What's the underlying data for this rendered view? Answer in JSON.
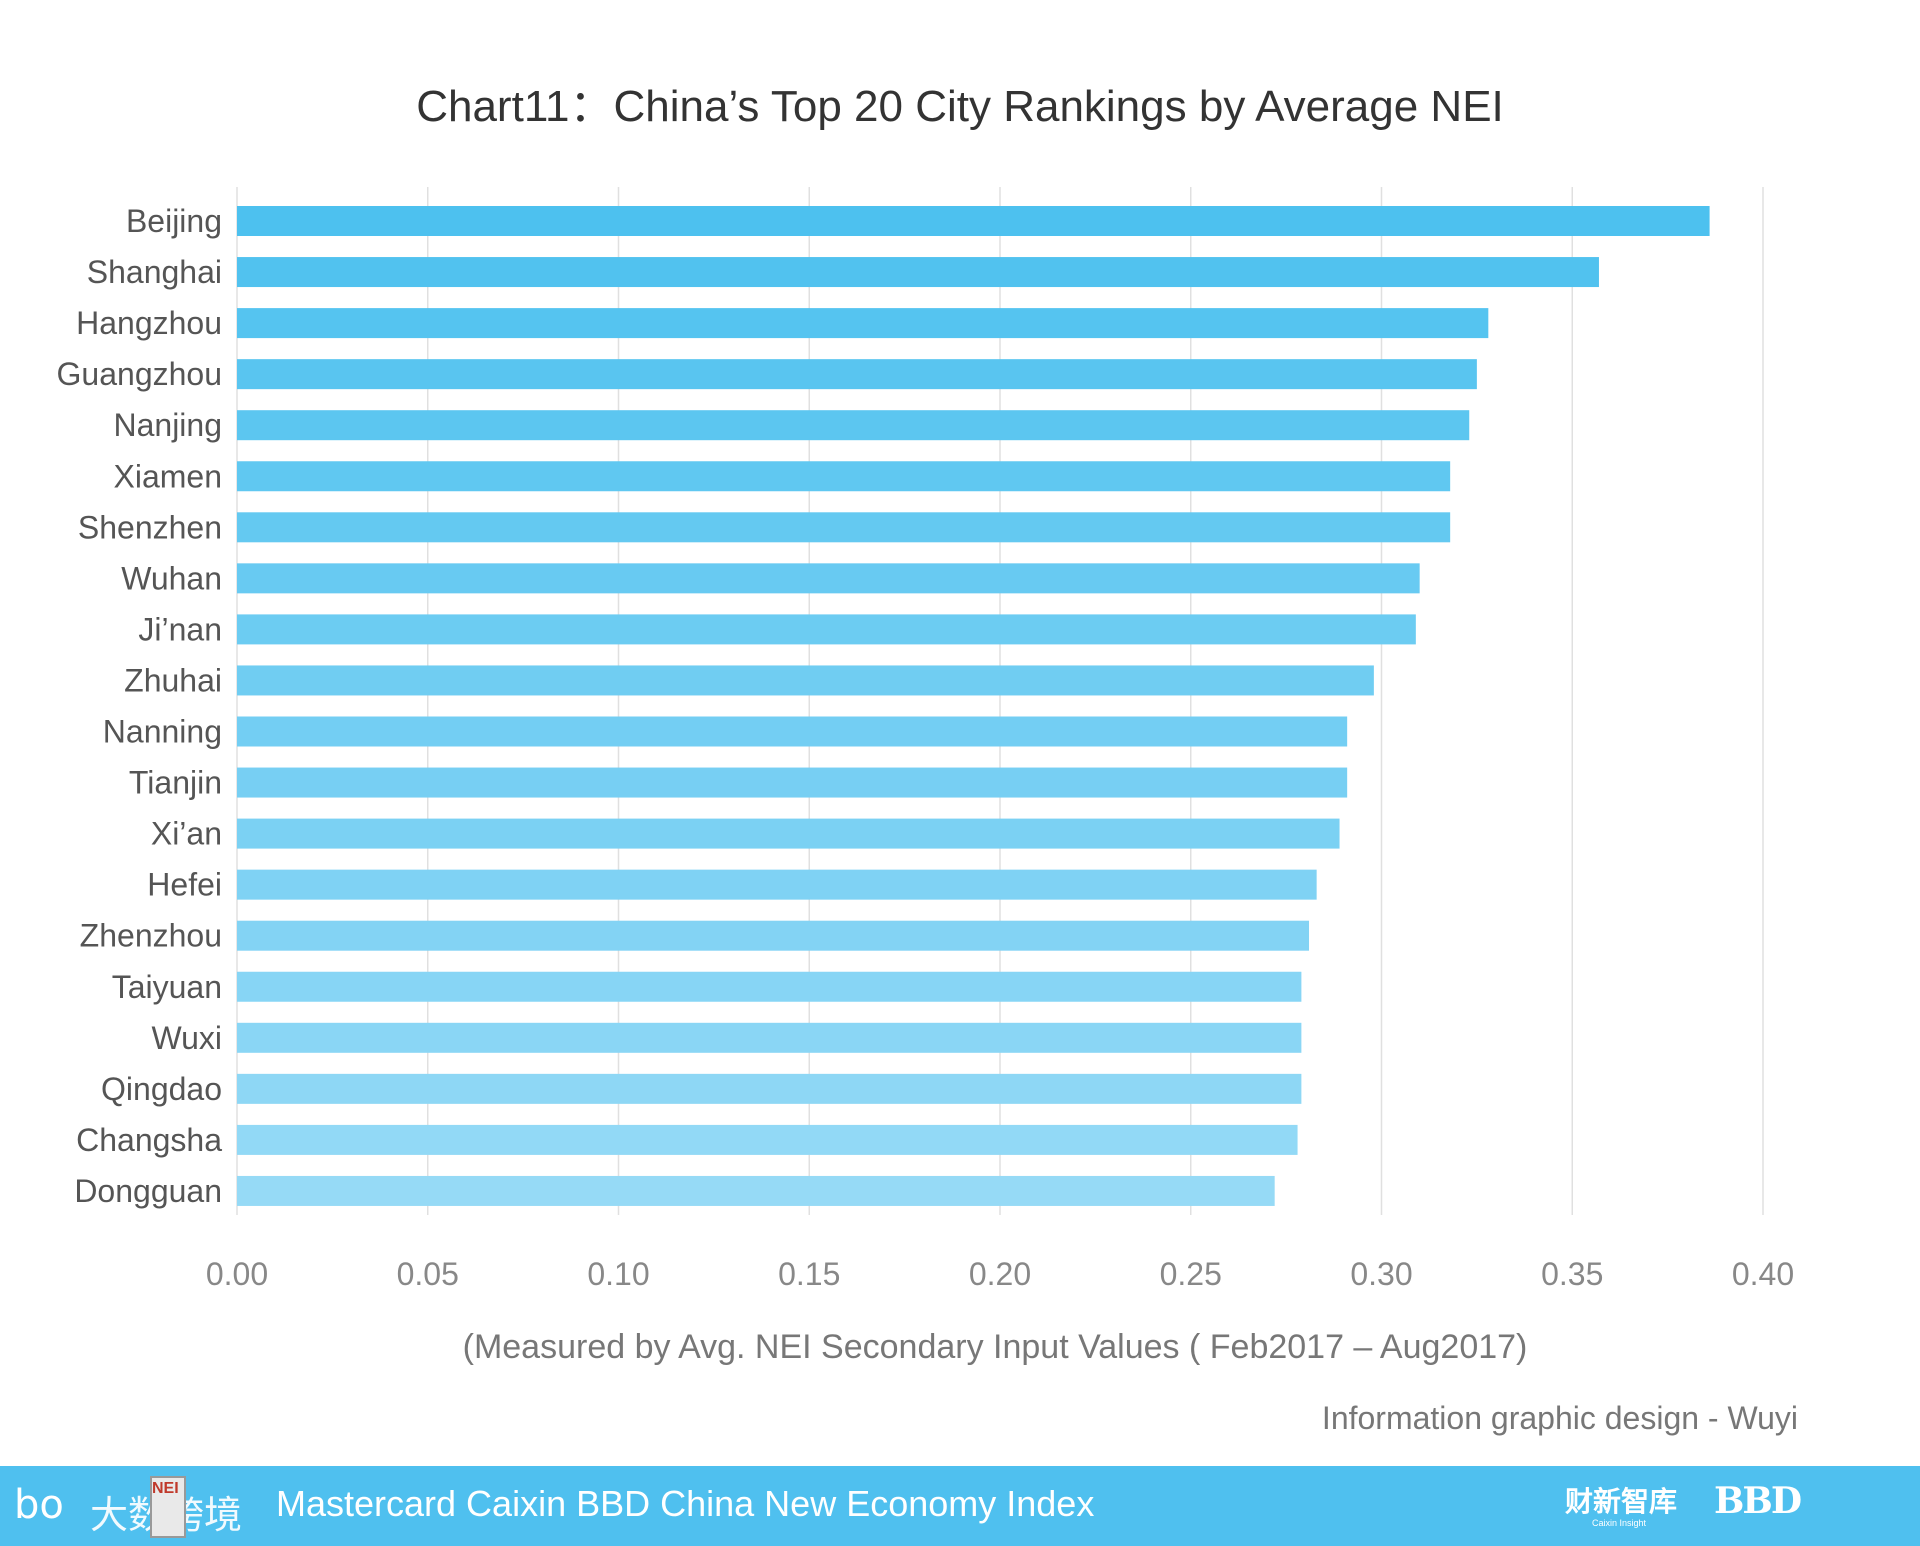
{
  "chart_data": {
    "type": "bar",
    "orientation": "horizontal",
    "title": "Chart11：China’s Top 20 City Rankings by Average NEI",
    "xlabel": "(Measured by Avg. NEI Secondary Input Values ( Feb2017 – Aug2017)",
    "ylabel": "",
    "xlim": [
      0,
      0.4
    ],
    "xticks": [
      "0.00",
      "0.05",
      "0.10",
      "0.15",
      "0.20",
      "0.25",
      "0.30",
      "0.35",
      "0.40"
    ],
    "grid": true,
    "categories": [
      "Beijing",
      "Shanghai",
      "Hangzhou",
      "Guangzhou",
      "Nanjing",
      "Xiamen",
      "Shenzhen",
      "Wuhan",
      "Ji’nan",
      "Zhuhai",
      "Nanning",
      "Tianjin",
      "Xi’an",
      "Hefei",
      "Zhenzhou",
      "Taiyuan",
      "Wuxi",
      "Qingdao",
      "Changsha",
      "Dongguan"
    ],
    "values": [
      0.386,
      0.357,
      0.328,
      0.325,
      0.323,
      0.318,
      0.318,
      0.31,
      0.309,
      0.298,
      0.291,
      0.291,
      0.289,
      0.283,
      0.281,
      0.279,
      0.279,
      0.279,
      0.278,
      0.272
    ],
    "colors": {
      "bar_top": "#4dc1ef",
      "bar_bottom": "#96daf6",
      "grid": "#e0e0e0"
    }
  },
  "credit": "Information graphic design - Wuyi",
  "footer": {
    "logo_text": "大数跨境",
    "logo_mark": "bo",
    "logo_box_text": "NEI",
    "title": "Mastercard Caixin BBD China New Economy Index",
    "brand_caixin": "财新智库",
    "brand_caixin_sub": "Caixin Insight",
    "brand_bbd": "BBD",
    "color": "#4fc0ef"
  }
}
